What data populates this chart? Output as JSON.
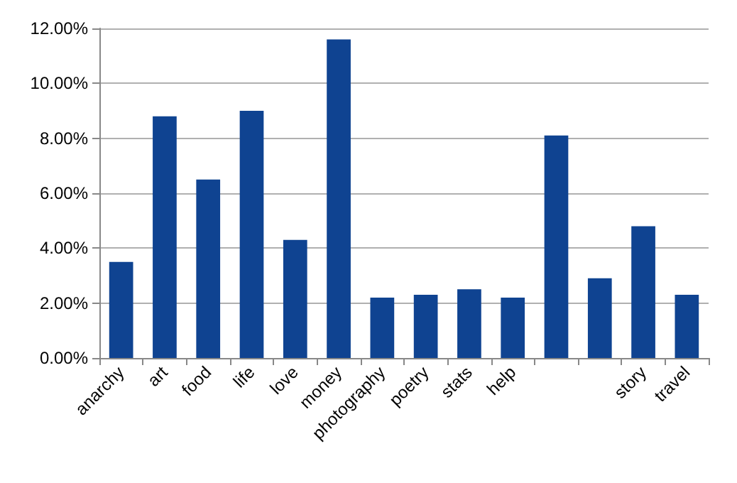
{
  "chart_data": {
    "type": "bar",
    "categories": [
      "anarchy",
      "art",
      "food",
      "life",
      "love",
      "money",
      "photography",
      "poetry",
      "stats",
      "help",
      null,
      null,
      "story",
      "travel"
    ],
    "values": [
      3.5,
      8.8,
      6.5,
      9.0,
      4.3,
      11.6,
      2.2,
      2.3,
      2.5,
      2.2,
      8.1,
      2.9,
      4.8,
      2.3
    ],
    "color": "#0f4391",
    "ylim": [
      0,
      12
    ],
    "yticks": [
      {
        "value": 0,
        "label": "0.00%"
      },
      {
        "value": 2,
        "label": "2.00%"
      },
      {
        "value": 4,
        "label": "4.00%"
      },
      {
        "value": 6,
        "label": "6.00%"
      },
      {
        "value": 8,
        "label": "8.00%"
      },
      {
        "value": 10,
        "label": "10.00%"
      },
      {
        "value": 12,
        "label": "12.00%"
      }
    ],
    "grid": "y"
  }
}
